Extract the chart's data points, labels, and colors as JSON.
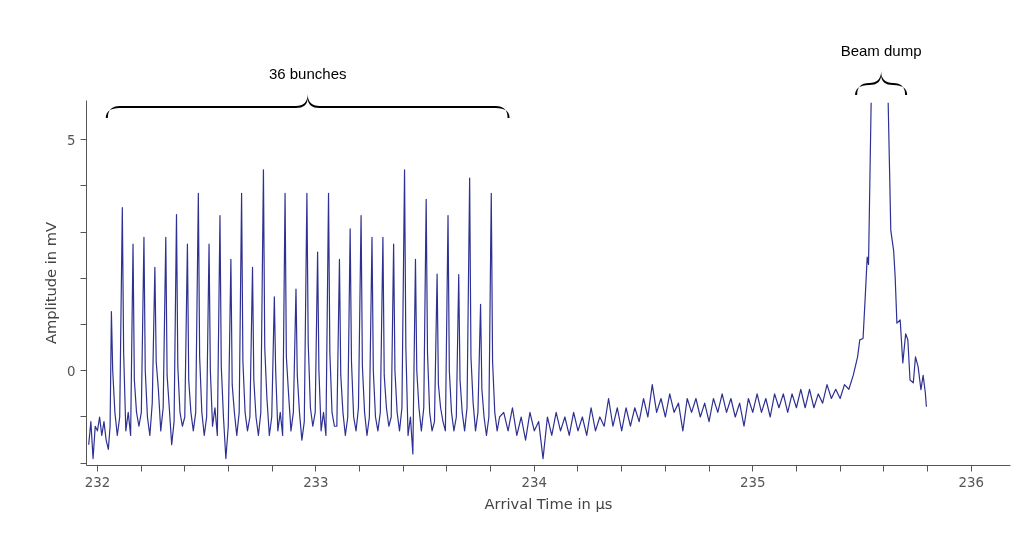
{
  "chart_data": {
    "type": "line",
    "xlabel": "Arrival Time in µs",
    "ylabel": "Amplitude in mV",
    "xlim": [
      231.95,
      236.18
    ],
    "ylim": [
      -2.05,
      5.85
    ],
    "xticks": [
      {
        "value": 232.0,
        "label": "232"
      },
      {
        "value": 232.2,
        "label": null
      },
      {
        "value": 232.4,
        "label": null
      },
      {
        "value": 232.6,
        "label": null
      },
      {
        "value": 232.8,
        "label": null
      },
      {
        "value": 233.0,
        "label": "233"
      },
      {
        "value": 233.2,
        "label": null
      },
      {
        "value": 233.4,
        "label": null
      },
      {
        "value": 233.6,
        "label": null
      },
      {
        "value": 233.8,
        "label": null
      },
      {
        "value": 234.0,
        "label": "234"
      },
      {
        "value": 234.2,
        "label": null
      },
      {
        "value": 234.4,
        "label": null
      },
      {
        "value": 234.6,
        "label": null
      },
      {
        "value": 234.8,
        "label": null
      },
      {
        "value": 235.0,
        "label": "235"
      },
      {
        "value": 235.2,
        "label": null
      },
      {
        "value": 235.4,
        "label": null
      },
      {
        "value": 235.6,
        "label": null
      },
      {
        "value": 235.8,
        "label": null
      },
      {
        "value": 236.0,
        "label": "236"
      }
    ],
    "yticks": [
      {
        "value": -2,
        "label": null
      },
      {
        "value": -1,
        "label": null
      },
      0,
      {
        "value": 1,
        "label": null
      },
      {
        "value": 2,
        "label": null
      },
      {
        "value": 3,
        "label": null
      },
      {
        "value": 4,
        "label": null
      },
      5
    ],
    "grid": false,
    "marker": "none",
    "line_style": "solid",
    "annotations": [
      "36 bunches",
      "Beam dump"
    ],
    "series": [
      {
        "color": "#2e3192",
        "x": [
          231.96,
          231.97,
          231.98,
          231.99,
          232.0,
          232.01,
          232.02,
          232.03,
          232.04,
          232.05,
          232.058,
          232.064,
          232.07,
          232.08,
          232.091,
          232.102,
          232.114,
          232.12,
          232.13,
          232.141,
          232.152,
          232.163,
          232.169,
          232.179,
          232.19,
          232.201,
          232.213,
          232.219,
          232.229,
          232.24,
          232.251,
          232.263,
          232.269,
          232.279,
          232.29,
          232.301,
          232.313,
          232.319,
          232.329,
          232.34,
          232.351,
          232.362,
          232.368,
          232.378,
          232.389,
          232.4,
          232.412,
          232.418,
          232.428,
          232.439,
          232.45,
          232.462,
          232.468,
          232.478,
          232.489,
          232.5,
          232.511,
          232.517,
          232.527,
          232.538,
          232.549,
          232.561,
          232.567,
          232.577,
          232.588,
          232.599,
          232.611,
          232.617,
          232.627,
          232.638,
          232.649,
          232.66,
          232.666,
          232.676,
          232.687,
          232.698,
          232.71,
          232.716,
          232.726,
          232.737,
          232.748,
          232.76,
          232.766,
          232.776,
          232.787,
          232.798,
          232.81,
          232.816,
          232.826,
          232.837,
          232.848,
          232.859,
          232.865,
          232.875,
          232.886,
          232.897,
          232.909,
          232.915,
          232.925,
          232.936,
          232.947,
          232.959,
          232.965,
          232.975,
          232.986,
          232.997,
          233.008,
          233.014,
          233.024,
          233.035,
          233.046,
          233.058,
          233.064,
          233.074,
          233.085,
          233.096,
          233.108,
          233.114,
          233.124,
          233.135,
          233.146,
          233.157,
          233.163,
          233.173,
          233.184,
          233.195,
          233.207,
          233.213,
          233.223,
          233.234,
          233.245,
          233.257,
          233.263,
          233.273,
          233.284,
          233.295,
          233.307,
          233.313,
          233.323,
          233.334,
          233.345,
          233.356,
          233.362,
          233.372,
          233.383,
          233.394,
          233.406,
          233.412,
          233.422,
          233.433,
          233.444,
          233.456,
          233.462,
          233.472,
          233.483,
          233.494,
          233.505,
          233.511,
          233.521,
          233.532,
          233.543,
          233.555,
          233.561,
          233.571,
          233.582,
          233.593,
          233.605,
          233.611,
          233.621,
          233.632,
          233.643,
          233.654,
          233.66,
          233.67,
          233.681,
          233.692,
          233.704,
          233.71,
          233.72,
          233.731,
          233.742,
          233.754,
          233.76,
          233.77,
          233.781,
          233.792,
          233.803,
          233.809,
          233.819,
          233.83,
          233.841,
          233.86,
          233.88,
          233.9,
          233.92,
          233.94,
          233.96,
          233.98,
          234.0,
          234.02,
          234.04,
          234.06,
          234.08,
          234.1,
          234.12,
          234.14,
          234.16,
          234.18,
          234.2,
          234.22,
          234.24,
          234.26,
          234.28,
          234.3,
          234.32,
          234.34,
          234.36,
          234.38,
          234.4,
          234.42,
          234.44,
          234.46,
          234.48,
          234.5,
          234.52,
          234.54,
          234.56,
          234.58,
          234.6,
          234.62,
          234.64,
          234.66,
          234.68,
          234.7,
          234.72,
          234.74,
          234.76,
          234.78,
          234.8,
          234.82,
          234.84,
          234.86,
          234.88,
          234.9,
          234.92,
          234.94,
          234.96,
          234.98,
          235.0,
          235.02,
          235.04,
          235.06,
          235.08,
          235.1,
          235.12,
          235.14,
          235.16,
          235.18,
          235.2,
          235.22,
          235.24,
          235.26,
          235.28,
          235.3,
          235.32,
          235.34,
          235.36,
          235.38,
          235.4,
          235.42,
          235.44,
          235.46,
          235.48,
          235.49,
          235.505,
          235.515,
          235.524,
          235.53,
          235.542,
          235.58,
          235.62,
          235.632,
          235.645,
          235.652,
          235.66,
          235.675,
          235.687,
          235.7,
          235.71,
          235.72,
          235.735,
          235.745,
          235.757,
          235.77,
          235.78,
          235.79,
          235.795
        ],
        "values": [
          -1.6,
          -1.1,
          -1.9,
          -1.2,
          -1.3,
          -1.0,
          -1.4,
          -1.1,
          -1.5,
          -1.7,
          -1.2,
          1.28,
          0.0,
          -0.9,
          -1.4,
          -1.0,
          3.53,
          0.4,
          -1.3,
          -0.9,
          -1.4,
          2.74,
          -0.2,
          -0.9,
          -1.2,
          -0.9,
          2.89,
          0.0,
          -1.0,
          -1.4,
          -0.7,
          2.24,
          0.2,
          -0.4,
          -1.3,
          -0.8,
          2.89,
          -0.1,
          -0.8,
          -1.6,
          -1.1,
          3.38,
          0.1,
          -0.9,
          -1.2,
          -1.0,
          2.74,
          -0.2,
          -0.9,
          -1.3,
          -0.9,
          3.84,
          0.3,
          -0.9,
          -1.4,
          -1.0,
          2.74,
          0.0,
          -1.2,
          -0.8,
          -1.4,
          3.36,
          0.1,
          -1.0,
          -1.9,
          -1.2,
          2.41,
          -0.3,
          -0.9,
          -1.4,
          -0.9,
          3.84,
          0.2,
          -0.9,
          -1.3,
          -1.0,
          2.24,
          -0.2,
          -1.0,
          -1.4,
          -0.9,
          4.35,
          0.5,
          -0.6,
          -1.4,
          -1.0,
          1.6,
          0.0,
          -1.3,
          -0.9,
          -1.4,
          3.84,
          0.3,
          -0.5,
          -1.3,
          -0.9,
          1.77,
          -0.1,
          -0.9,
          -1.5,
          -1.1,
          3.84,
          0.6,
          -0.8,
          -1.2,
          -0.9,
          2.57,
          0.0,
          -1.3,
          -0.9,
          -1.4,
          3.84,
          0.4,
          -0.9,
          -1.2,
          -1.2,
          2.41,
          -0.1,
          -0.9,
          -1.4,
          -1.0,
          3.07,
          0.2,
          -1.0,
          -1.3,
          -0.8,
          3.36,
          0.1,
          -0.9,
          -1.4,
          -1.0,
          2.89,
          0.0,
          -1.0,
          -1.3,
          -0.9,
          2.89,
          -0.1,
          -0.8,
          -1.2,
          -1.0,
          2.74,
          0.0,
          -0.9,
          -1.3,
          -0.8,
          4.35,
          0.5,
          -1.4,
          -1.0,
          -1.8,
          2.41,
          0.0,
          -0.8,
          -1.3,
          -0.8,
          3.71,
          0.4,
          -0.9,
          -1.3,
          -1.1,
          2.09,
          -0.3,
          -0.8,
          -1.1,
          -1.3,
          3.36,
          0.0,
          -0.9,
          -1.3,
          -1.0,
          2.08,
          -0.2,
          -0.9,
          -1.3,
          -0.8,
          4.17,
          0.3,
          -0.7,
          -1.3,
          -0.9,
          1.44,
          -0.4,
          -1.0,
          -1.4,
          -1.0,
          3.84,
          0.2,
          -0.9,
          -1.3,
          -1.0,
          -0.9,
          -1.3,
          -0.8,
          -1.4,
          -1.0,
          -1.5,
          -0.9,
          -1.3,
          -1.1,
          -1.9,
          -1.0,
          -1.4,
          -0.9,
          -1.3,
          -1.0,
          -1.4,
          -0.9,
          -1.3,
          -1.0,
          -1.4,
          -0.8,
          -1.3,
          -1.0,
          -1.2,
          -0.6,
          -1.2,
          -0.8,
          -1.3,
          -0.8,
          -1.2,
          -0.8,
          -1.1,
          -0.6,
          -1.0,
          -0.3,
          -0.9,
          -0.6,
          -1.0,
          -0.5,
          -0.9,
          -0.7,
          -1.3,
          -0.6,
          -0.9,
          -0.6,
          -1.0,
          -0.7,
          -1.1,
          -0.6,
          -0.9,
          -0.5,
          -0.9,
          -0.6,
          -1.0,
          -0.7,
          -1.2,
          -0.6,
          -0.9,
          -0.5,
          -0.9,
          -0.6,
          -1.0,
          -0.5,
          -0.8,
          -0.5,
          -0.9,
          -0.5,
          -0.8,
          -0.4,
          -0.8,
          -0.4,
          -0.8,
          -0.5,
          -0.7,
          -0.3,
          -0.6,
          -0.4,
          -0.6,
          -0.3,
          -0.4,
          -0.1,
          0.3,
          0.67,
          0.7,
          1.6,
          2.46,
          2.3,
          5.8,
          null,
          5.8,
          3.04,
          2.6,
          2.03,
          1.03,
          1.1,
          0.17,
          0.8,
          0.67,
          -0.2,
          -0.26,
          0.3,
          0.09,
          -0.41,
          -0.1,
          -0.47,
          -0.78
        ]
      }
    ]
  }
}
